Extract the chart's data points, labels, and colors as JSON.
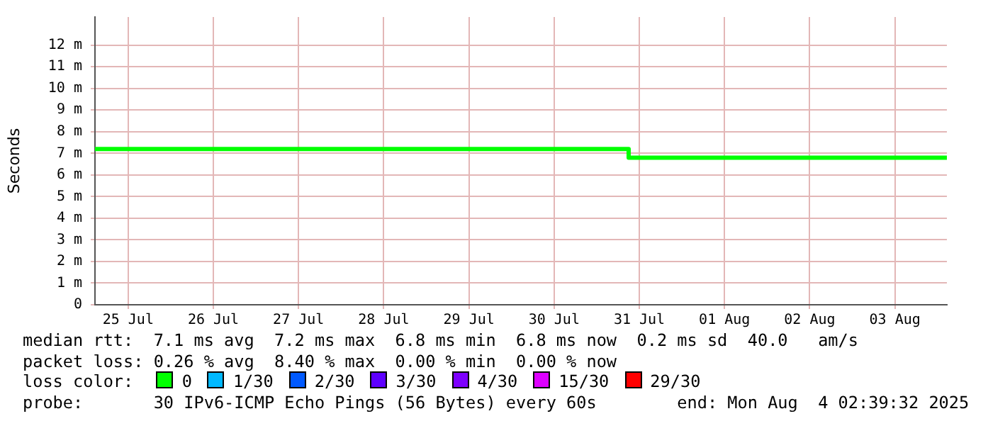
{
  "chart_data": {
    "type": "step",
    "ylabel": "Seconds",
    "legend_title": "loss color:",
    "legend": "bottom",
    "grid": true,
    "marker": "none",
    "x": [
      "2025-07-25T02:39",
      "2025-07-31T09:00",
      "2025-08-04T02:39"
    ],
    "xlim": [
      "2025-07-25T02:39",
      "2025-08-04T02:39"
    ],
    "xticks": [
      {
        "value": "2025-07-25T12:00",
        "label": "25 Jul"
      },
      {
        "value": "2025-07-26T12:00",
        "label": "26 Jul"
      },
      {
        "value": "2025-07-27T12:00",
        "label": "27 Jul"
      },
      {
        "value": "2025-07-28T12:00",
        "label": "28 Jul"
      },
      {
        "value": "2025-07-29T12:00",
        "label": "29 Jul"
      },
      {
        "value": "2025-07-30T12:00",
        "label": "30 Jul"
      },
      {
        "value": "2025-07-31T12:00",
        "label": "31 Jul"
      },
      {
        "value": "2025-08-01T12:00",
        "label": "01 Aug"
      },
      {
        "value": "2025-08-02T12:00",
        "label": "02 Aug"
      },
      {
        "value": "2025-08-03T12:00",
        "label": "03 Aug"
      }
    ],
    "ylim": [
      0,
      13.3
    ],
    "yticks": [
      {
        "value": 0,
        "label": "0"
      },
      {
        "value": 1,
        "label": "1 m"
      },
      {
        "value": 2,
        "label": "2 m"
      },
      {
        "value": 3,
        "label": "3 m"
      },
      {
        "value": 4,
        "label": "4 m"
      },
      {
        "value": 5,
        "label": "5 m"
      },
      {
        "value": 6,
        "label": "6 m"
      },
      {
        "value": 7,
        "label": "7 m"
      },
      {
        "value": 8,
        "label": "8 m"
      },
      {
        "value": 9,
        "label": "9 m"
      },
      {
        "value": 10,
        "label": "10 m"
      },
      {
        "value": 11,
        "label": "11 m"
      },
      {
        "value": 12,
        "label": "12 m"
      }
    ],
    "series": [
      {
        "name": "0",
        "color": "#00ff00",
        "values": [
          7.2,
          6.8,
          6.8
        ]
      },
      {
        "name": "1/30",
        "color": "#00b8ff",
        "values": [
          null,
          null,
          null
        ]
      },
      {
        "name": "2/30",
        "color": "#0059ff",
        "values": [
          null,
          null,
          null
        ]
      },
      {
        "name": "3/30",
        "color": "#5e00ff",
        "values": [
          null,
          null,
          null
        ]
      },
      {
        "name": "4/30",
        "color": "#7e00ff",
        "values": [
          null,
          null,
          null
        ]
      },
      {
        "name": "15/30",
        "color": "#dd00ff",
        "values": [
          null,
          null,
          null
        ]
      },
      {
        "name": "29/30",
        "color": "#ff0000",
        "values": [
          null,
          null,
          null
        ]
      }
    ],
    "annotations": [
      "median rtt:  7.1 ms avg  7.2 ms max  6.8 ms min  6.8 ms now  0.2 ms sd  40.0   am/s",
      "packet loss: 0.26 % avg  8.40 % max  0.00 % min  0.00 % now",
      "probe:       30 IPv6-ICMP Echo Pings (56 Bytes) every 60s        end: Mon Aug  4 02:39:32 2025"
    ]
  }
}
